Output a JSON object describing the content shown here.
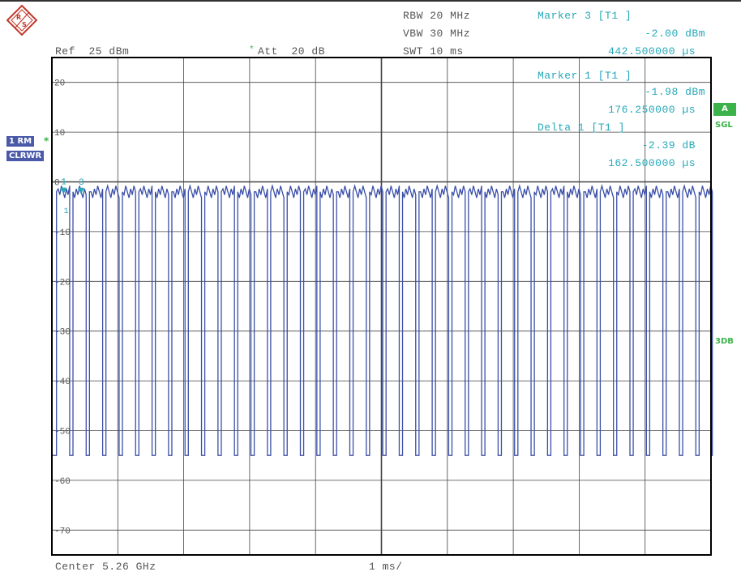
{
  "header": {
    "rbw": "RBW 20 MHz",
    "vbw": "VBW 30 MHz",
    "swt": "SWT 10 ms",
    "ref": "Ref  25 dBm",
    "att_star": "*",
    "att": "Att  20 dB"
  },
  "marker3": {
    "title": "Marker 3 [T1 ]",
    "level": "-2.00 dBm",
    "time": "442.500000 µs"
  },
  "marker1": {
    "title": "Marker 1 [T1 ]",
    "level": "-1.98 dBm",
    "time": "176.250000 µs"
  },
  "delta1": {
    "title": "Delta 1 [T1 ]",
    "level": "-2.39 dB",
    "time": "162.500000 µs"
  },
  "side": {
    "trace_label": "1 RM",
    "trace_star": "*",
    "trace_mode": "CLRWR",
    "a_badge": "A",
    "sgl": "SGL",
    "threedb": "3DB"
  },
  "footer": {
    "center": "Center 5.26 GHz",
    "scale": "1 ms/"
  },
  "marker_labels": {
    "m1": "1",
    "m3": "3",
    "d1": "1"
  },
  "colors": {
    "trace": "#3b4fa8",
    "marker": "#25a9b8",
    "grid": "#444444",
    "frame": "#000000",
    "badge_blue": "#4a5aa8",
    "badge_green": "#3bb34a"
  },
  "icons": {
    "logo": "rohde-schwarz-logo-icon"
  },
  "chart_data": {
    "type": "line",
    "xlabel": "Center 5.26 GHz",
    "x_division": "1 ms/",
    "xlim": [
      0,
      10
    ],
    "ylim": [
      -75,
      25
    ],
    "ytick_labels": [
      "20",
      "10",
      "0",
      "-10",
      "-20",
      "-30",
      "-40",
      "-50",
      "-60",
      "-70"
    ],
    "yticks": [
      20,
      10,
      0,
      -10,
      -20,
      -30,
      -40,
      -50,
      -60,
      -70
    ],
    "grid": true,
    "series": [
      {
        "high_level": -2,
        "low_level": -55,
        "pulse_period_ms": 0.25,
        "pulse_on_ms": 0.2,
        "pulse_count": 40
      }
    ],
    "markers": [
      {
        "label": "1",
        "x_us": 176.25,
        "y": -1.98
      },
      {
        "label": "3",
        "x_us": 442.5,
        "y": -2.0
      }
    ]
  }
}
